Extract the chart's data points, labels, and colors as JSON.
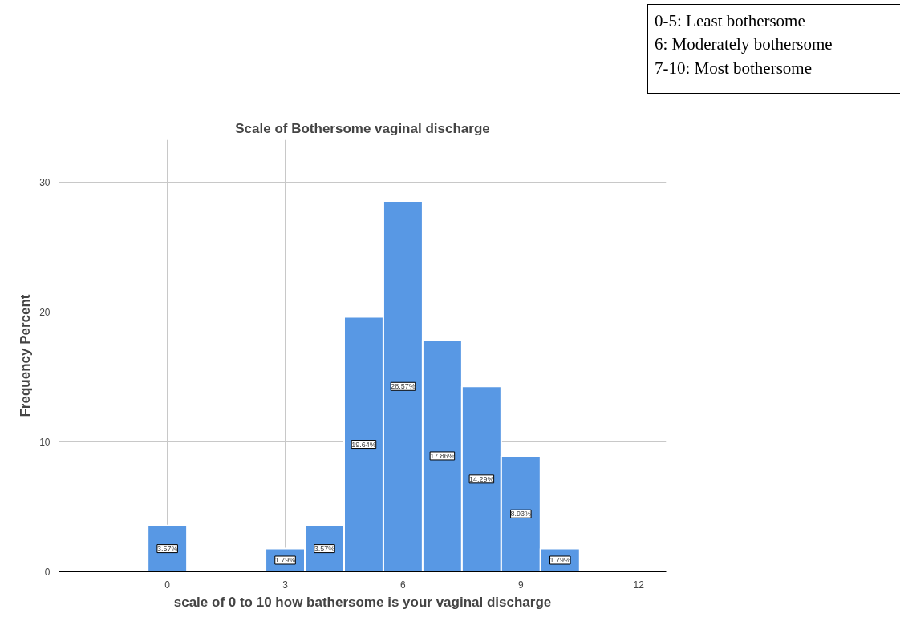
{
  "chart_data": {
    "type": "histogram",
    "title": "Scale of Bothersome vaginal discharge",
    "xlabel": "scale of 0 to 10 how bathersome is your vaginal discharge",
    "ylabel": "Frequency Percent",
    "bins": [
      -0.5,
      0.5,
      1.5,
      2.5,
      3.5,
      4.5,
      5.5,
      6.5,
      7.5,
      8.5,
      9.5,
      10.5
    ],
    "values": [
      3.57,
      null,
      null,
      1.79,
      3.57,
      19.64,
      28.57,
      17.86,
      14.29,
      8.93,
      1.79
    ],
    "value_labels": [
      "3.57%",
      null,
      null,
      "1.79%",
      "3.57%",
      "19.64%",
      "28.57%",
      "17.86%",
      "14.29%",
      "8.93%",
      "1.79%"
    ],
    "color": "#5898e4",
    "xlim": [
      -2.76,
      12.7
    ],
    "xticks": [
      0,
      3,
      6,
      9,
      12
    ],
    "ylim": [
      0,
      33.3
    ],
    "yticks": [
      0,
      10,
      20,
      30
    ],
    "grid": true,
    "annotations": [
      "0-5: Least bothersome\n6: Moderately bothersome\n7-10: Most bothersome"
    ]
  }
}
